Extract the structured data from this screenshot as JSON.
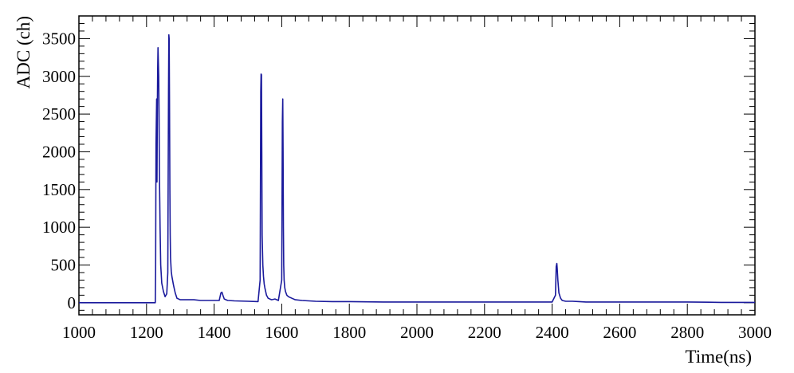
{
  "chart_data": {
    "type": "line",
    "title": "",
    "xlabel": "Time(ns)",
    "ylabel": "ADC (ch)",
    "xlim": [
      1000,
      3000
    ],
    "ylim": [
      -160,
      3800
    ],
    "x_ticks": [
      1000,
      1200,
      1400,
      1600,
      1800,
      2000,
      2200,
      2400,
      2600,
      2800,
      3000
    ],
    "y_ticks": [
      0,
      500,
      1000,
      1500,
      2000,
      2500,
      3000,
      3500
    ],
    "x_tick_labels": [
      "1000",
      "1200",
      "1400",
      "1600",
      "1800",
      "2000",
      "2200",
      "2400",
      "2600",
      "2800",
      "3000"
    ],
    "y_tick_labels": [
      "0",
      "500",
      "1000",
      "1500",
      "2000",
      "2500",
      "3000",
      "3500"
    ],
    "grid": false,
    "line_color": "#1a1a9c",
    "series": [
      {
        "x": [
          1000,
          1150,
          1226,
          1227,
          1228,
          1230,
          1231,
          1232,
          1233,
          1234,
          1236,
          1237,
          1238,
          1240,
          1242,
          1245,
          1250,
          1255,
          1260,
          1263,
          1264,
          1265,
          1266,
          1267,
          1268,
          1269,
          1270,
          1271,
          1273,
          1275,
          1280,
          1285,
          1290,
          1300,
          1320,
          1340,
          1360,
          1380,
          1400,
          1415,
          1420,
          1423,
          1426,
          1430,
          1440,
          1460,
          1500,
          1530,
          1536,
          1537,
          1538,
          1539,
          1540,
          1541,
          1542,
          1544,
          1546,
          1548,
          1550,
          1555,
          1560,
          1570,
          1580,
          1590,
          1600,
          1601,
          1602,
          1603,
          1604,
          1605,
          1606,
          1607,
          1609,
          1611,
          1615,
          1620,
          1630,
          1640,
          1660,
          1700,
          1750,
          1800,
          1900,
          2000,
          2100,
          2200,
          2300,
          2400,
          2410,
          2412,
          2414,
          2415,
          2417,
          2420,
          2425,
          2430,
          2440,
          2460,
          2480,
          2500,
          2600,
          2700,
          2800,
          2900,
          3000
        ],
        "y": [
          0,
          0,
          0,
          400,
          2100,
          2700,
          1600,
          2600,
          3100,
          3380,
          3000,
          2500,
          1800,
          1000,
          500,
          260,
          150,
          80,
          120,
          400,
          1500,
          2800,
          3550,
          3500,
          2700,
          1500,
          900,
          600,
          420,
          350,
          230,
          130,
          60,
          40,
          40,
          40,
          30,
          30,
          30,
          30,
          130,
          140,
          100,
          50,
          30,
          25,
          20,
          15,
          300,
          1500,
          2800,
          3030,
          3020,
          2000,
          900,
          500,
          350,
          250,
          200,
          100,
          60,
          40,
          50,
          30,
          300,
          1400,
          2400,
          2700,
          2000,
          1000,
          500,
          300,
          200,
          150,
          100,
          80,
          60,
          40,
          30,
          20,
          15,
          15,
          10,
          10,
          10,
          10,
          10,
          10,
          100,
          480,
          520,
          450,
          300,
          130,
          60,
          30,
          20,
          20,
          15,
          10,
          10,
          10,
          10,
          5,
          5
        ]
      }
    ]
  }
}
